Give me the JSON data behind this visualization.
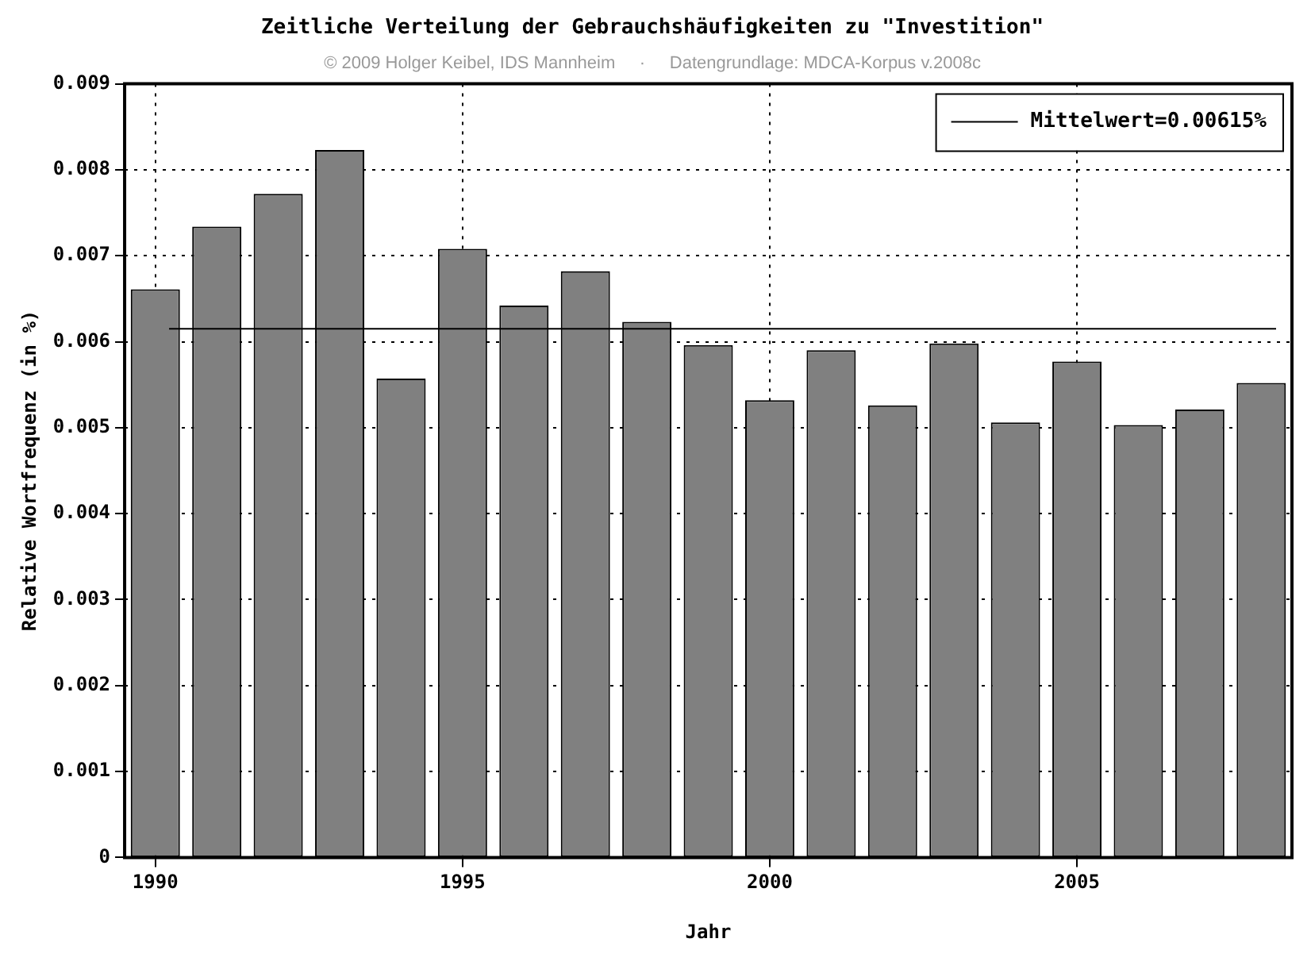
{
  "chart_data": {
    "type": "bar",
    "title": "Zeitliche Verteilung der Gebrauchshäufigkeiten zu \"Investition\"",
    "subtitle": "© 2009 Holger Keibel, IDS Mannheim     ·     Datengrundlage: MDCA-Korpus v.2008c",
    "xlabel": "Jahr",
    "ylabel": "Relative Wortfrequenz (in %)",
    "categories": [
      "1990",
      null,
      null,
      null,
      null,
      "1995",
      null,
      null,
      null,
      null,
      "2000",
      null,
      null,
      null,
      null,
      "2005",
      null,
      null,
      null
    ],
    "values": [
      0.00661,
      0.00734,
      0.00772,
      0.00823,
      0.00557,
      0.00708,
      0.00642,
      0.00682,
      0.00623,
      0.00596,
      0.00532,
      0.0059,
      0.00526,
      0.00598,
      0.00506,
      0.00577,
      0.00503,
      0.00521,
      0.00552
    ],
    "color": "#808080",
    "ylim": [
      0,
      0.009
    ],
    "yticks": [
      {
        "value": 0,
        "label": "0"
      },
      {
        "value": 0.001,
        "label": "0.001"
      },
      {
        "value": 0.002,
        "label": "0.002"
      },
      {
        "value": 0.003,
        "label": "0.003"
      },
      {
        "value": 0.004,
        "label": "0.004"
      },
      {
        "value": 0.005,
        "label": "0.005"
      },
      {
        "value": 0.006,
        "label": "0.006"
      },
      {
        "value": 0.007,
        "label": "0.007"
      },
      {
        "value": 0.008,
        "label": "0.008"
      },
      {
        "value": 0.009,
        "label": "0.009"
      }
    ],
    "ref_lines": [
      {
        "axis": "y",
        "value": 0.00615,
        "label": "Mittelwert=0.00615%",
        "color": "#000000"
      }
    ],
    "grid": true,
    "legend": "top right"
  }
}
